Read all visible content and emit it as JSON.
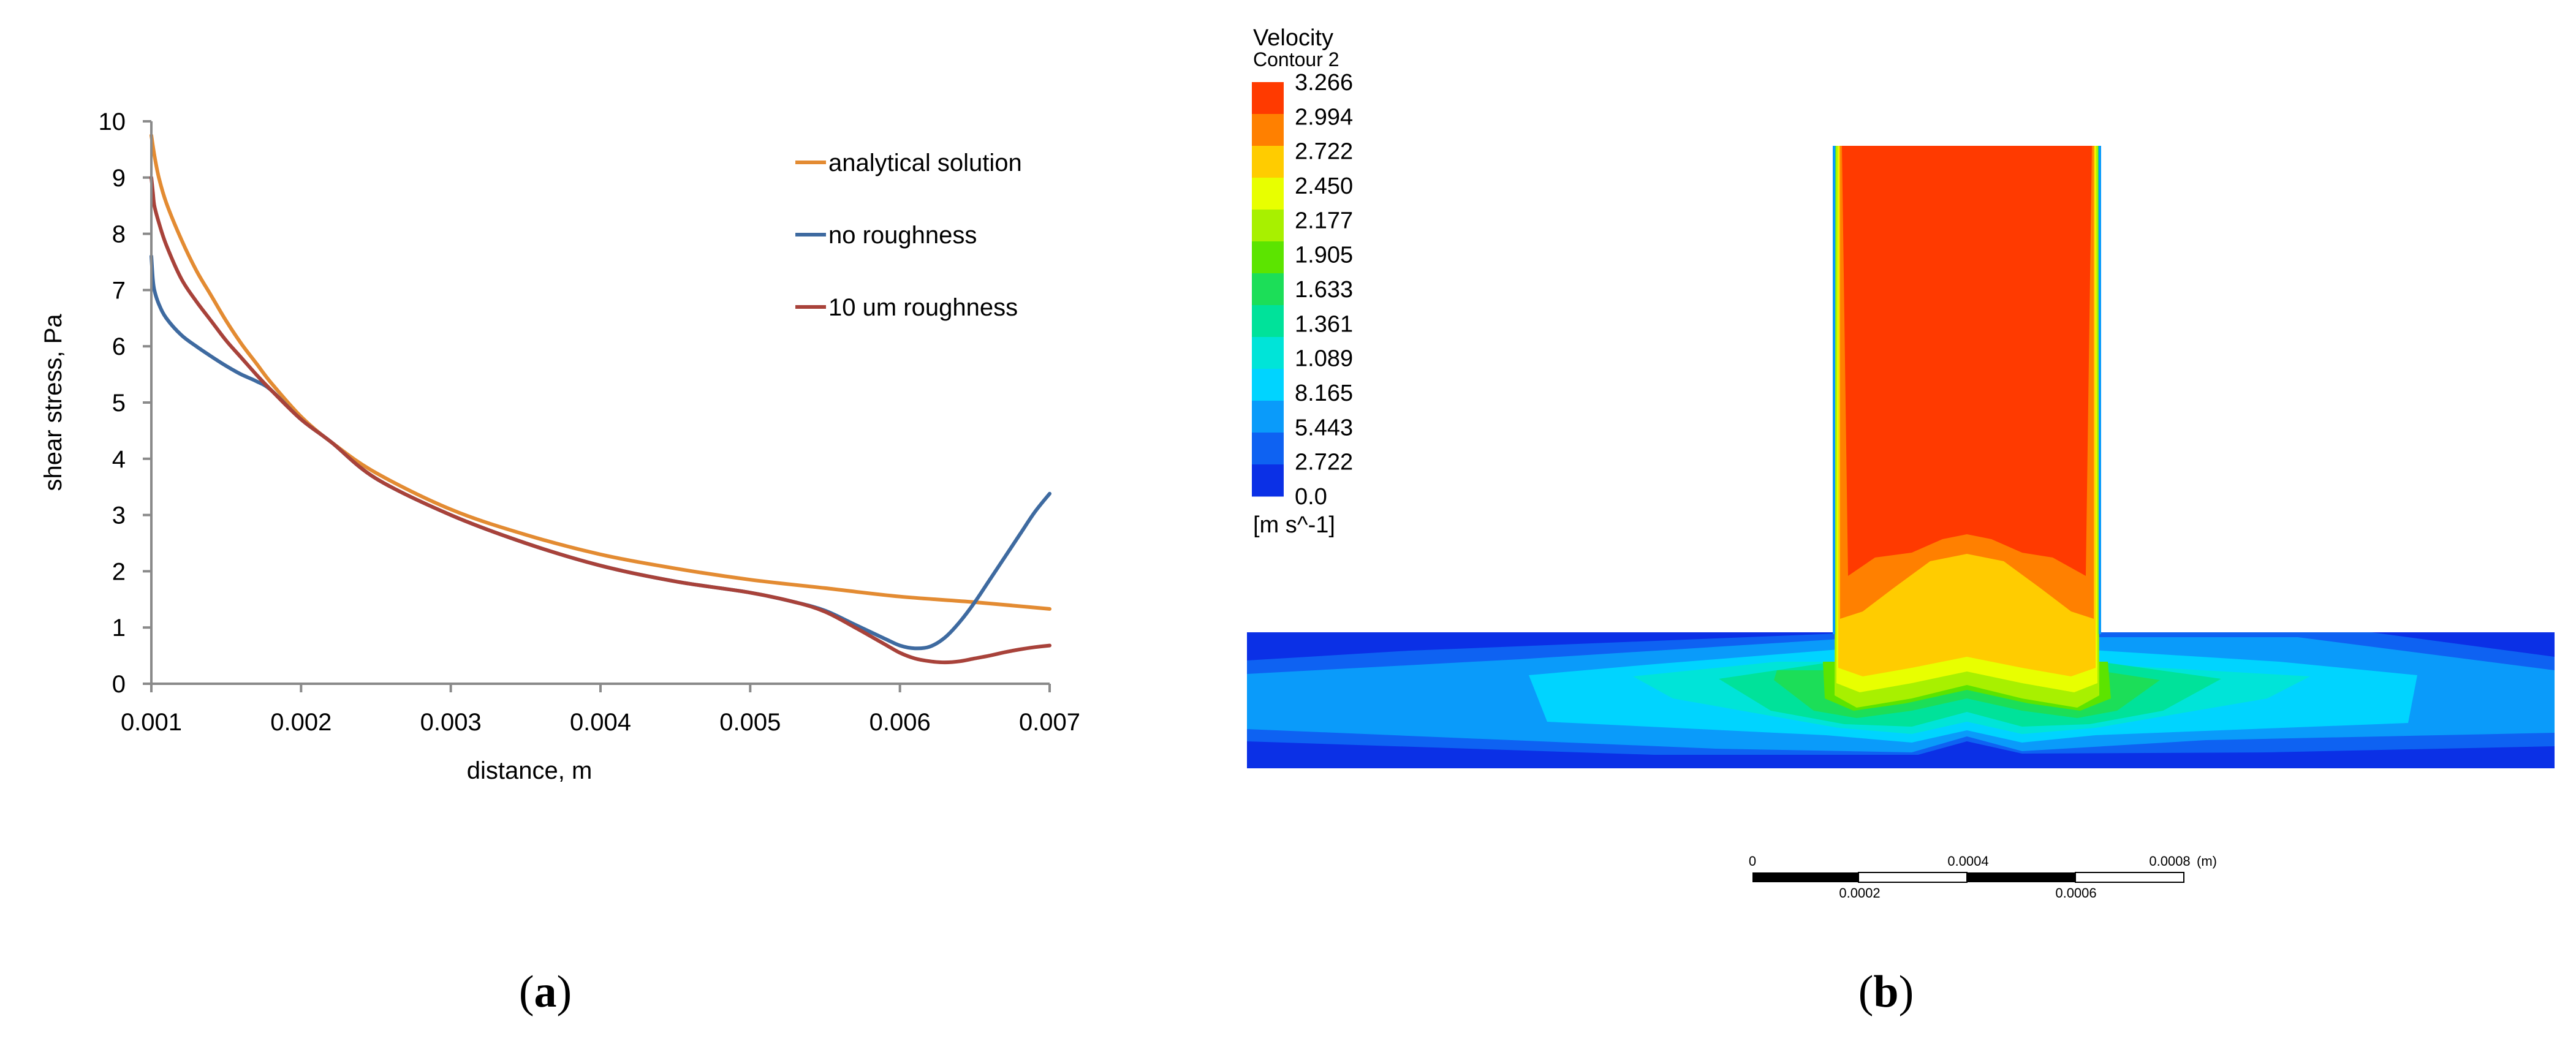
{
  "panel_a": {
    "label_open": "(",
    "label_letter": "a",
    "label_close": ")"
  },
  "panel_b": {
    "label_open": "(",
    "label_letter": "b",
    "label_close": ")"
  },
  "chart_data": [
    {
      "type": "line",
      "title": "",
      "xlabel": "distance, m",
      "ylabel": "shear stress, Pa",
      "xlim": [
        0.001,
        0.007
      ],
      "ylim": [
        0,
        10
      ],
      "xticks": [
        "0.001",
        "0.002",
        "0.003",
        "0.004",
        "0.005",
        "0.006",
        "0.007"
      ],
      "yticks": [
        "0",
        "1",
        "2",
        "3",
        "4",
        "5",
        "6",
        "7",
        "8",
        "9",
        "10"
      ],
      "grid": false,
      "legend_position": "top-right",
      "series": [
        {
          "name": "analytical solution",
          "color": "#E38B32",
          "x": [
            0.001,
            0.00102,
            0.00105,
            0.0011,
            0.0012,
            0.0013,
            0.0014,
            0.0015,
            0.0016,
            0.0017,
            0.0018,
            0.002,
            0.0022,
            0.0025,
            0.003,
            0.0035,
            0.004,
            0.0045,
            0.005,
            0.0055,
            0.006,
            0.0065,
            0.007
          ],
          "y": [
            9.75,
            9.4,
            9.0,
            8.55,
            7.9,
            7.35,
            6.9,
            6.45,
            6.05,
            5.7,
            5.35,
            4.75,
            4.3,
            3.75,
            3.1,
            2.65,
            2.3,
            2.05,
            1.85,
            1.7,
            1.55,
            1.45,
            1.33
          ]
        },
        {
          "name": "no roughness",
          "color": "#3E6AA0",
          "x": [
            0.001,
            0.00101,
            0.00102,
            0.00105,
            0.0011,
            0.0012,
            0.0013,
            0.0014,
            0.0015,
            0.0016,
            0.0017,
            0.0018,
            0.002,
            0.0022,
            0.0025,
            0.003,
            0.0035,
            0.004,
            0.0045,
            0.005,
            0.0053,
            0.0055,
            0.0057,
            0.0059,
            0.006,
            0.0061,
            0.0062,
            0.0063,
            0.0064,
            0.0065,
            0.0066,
            0.0067,
            0.0068,
            0.0069,
            0.007
          ],
          "y": [
            7.6,
            7.2,
            7.0,
            6.75,
            6.5,
            6.2,
            6.0,
            5.82,
            5.65,
            5.5,
            5.38,
            5.22,
            4.7,
            4.3,
            3.65,
            3.0,
            2.5,
            2.1,
            1.82,
            1.62,
            1.45,
            1.3,
            1.05,
            0.8,
            0.68,
            0.63,
            0.66,
            0.82,
            1.1,
            1.45,
            1.85,
            2.25,
            2.65,
            3.05,
            3.38
          ]
        },
        {
          "name": "10 um roughness",
          "color": "#A8423A",
          "x": [
            0.001,
            0.00101,
            0.00102,
            0.00105,
            0.0011,
            0.0012,
            0.0013,
            0.0014,
            0.0015,
            0.0016,
            0.0017,
            0.0018,
            0.002,
            0.0022,
            0.0025,
            0.003,
            0.0035,
            0.004,
            0.0045,
            0.005,
            0.0053,
            0.0055,
            0.0057,
            0.0059,
            0.006,
            0.0061,
            0.0062,
            0.0063,
            0.0064,
            0.0065,
            0.0066,
            0.0067,
            0.0068,
            0.0069,
            0.007
          ],
          "y": [
            9.0,
            8.75,
            8.5,
            8.2,
            7.8,
            7.2,
            6.8,
            6.45,
            6.1,
            5.8,
            5.5,
            5.22,
            4.7,
            4.3,
            3.65,
            3.0,
            2.5,
            2.1,
            1.82,
            1.62,
            1.45,
            1.28,
            1.0,
            0.7,
            0.55,
            0.45,
            0.4,
            0.38,
            0.4,
            0.45,
            0.5,
            0.56,
            0.61,
            0.65,
            0.68
          ]
        }
      ]
    },
    {
      "type": "heatmap",
      "title": "Velocity",
      "subtitle": "Contour 2",
      "units": "[m s^-1]",
      "legend_position": "top-left",
      "color_levels": [
        "3.266",
        "2.994",
        "2.722",
        "2.450",
        "2.177",
        "1.905",
        "1.633",
        "1.361",
        "1.089",
        "8.165",
        "5.443",
        "2.722",
        "0.0"
      ],
      "color_bands": [
        "#FF3A00",
        "#FF8000",
        "#FFCC00",
        "#E8FF00",
        "#A8F000",
        "#5CE400",
        "#1CDE58",
        "#00E29A",
        "#00E4D8",
        "#00D4FF",
        "#0A9BFA",
        "#0E62F2",
        "#0B30E6"
      ],
      "scale_bar": {
        "unit": "(m)",
        "top_labels": [
          "0",
          "0.0004",
          "0.0008"
        ],
        "bottom_labels": [
          "0.0002",
          "0.0006"
        ]
      }
    }
  ]
}
